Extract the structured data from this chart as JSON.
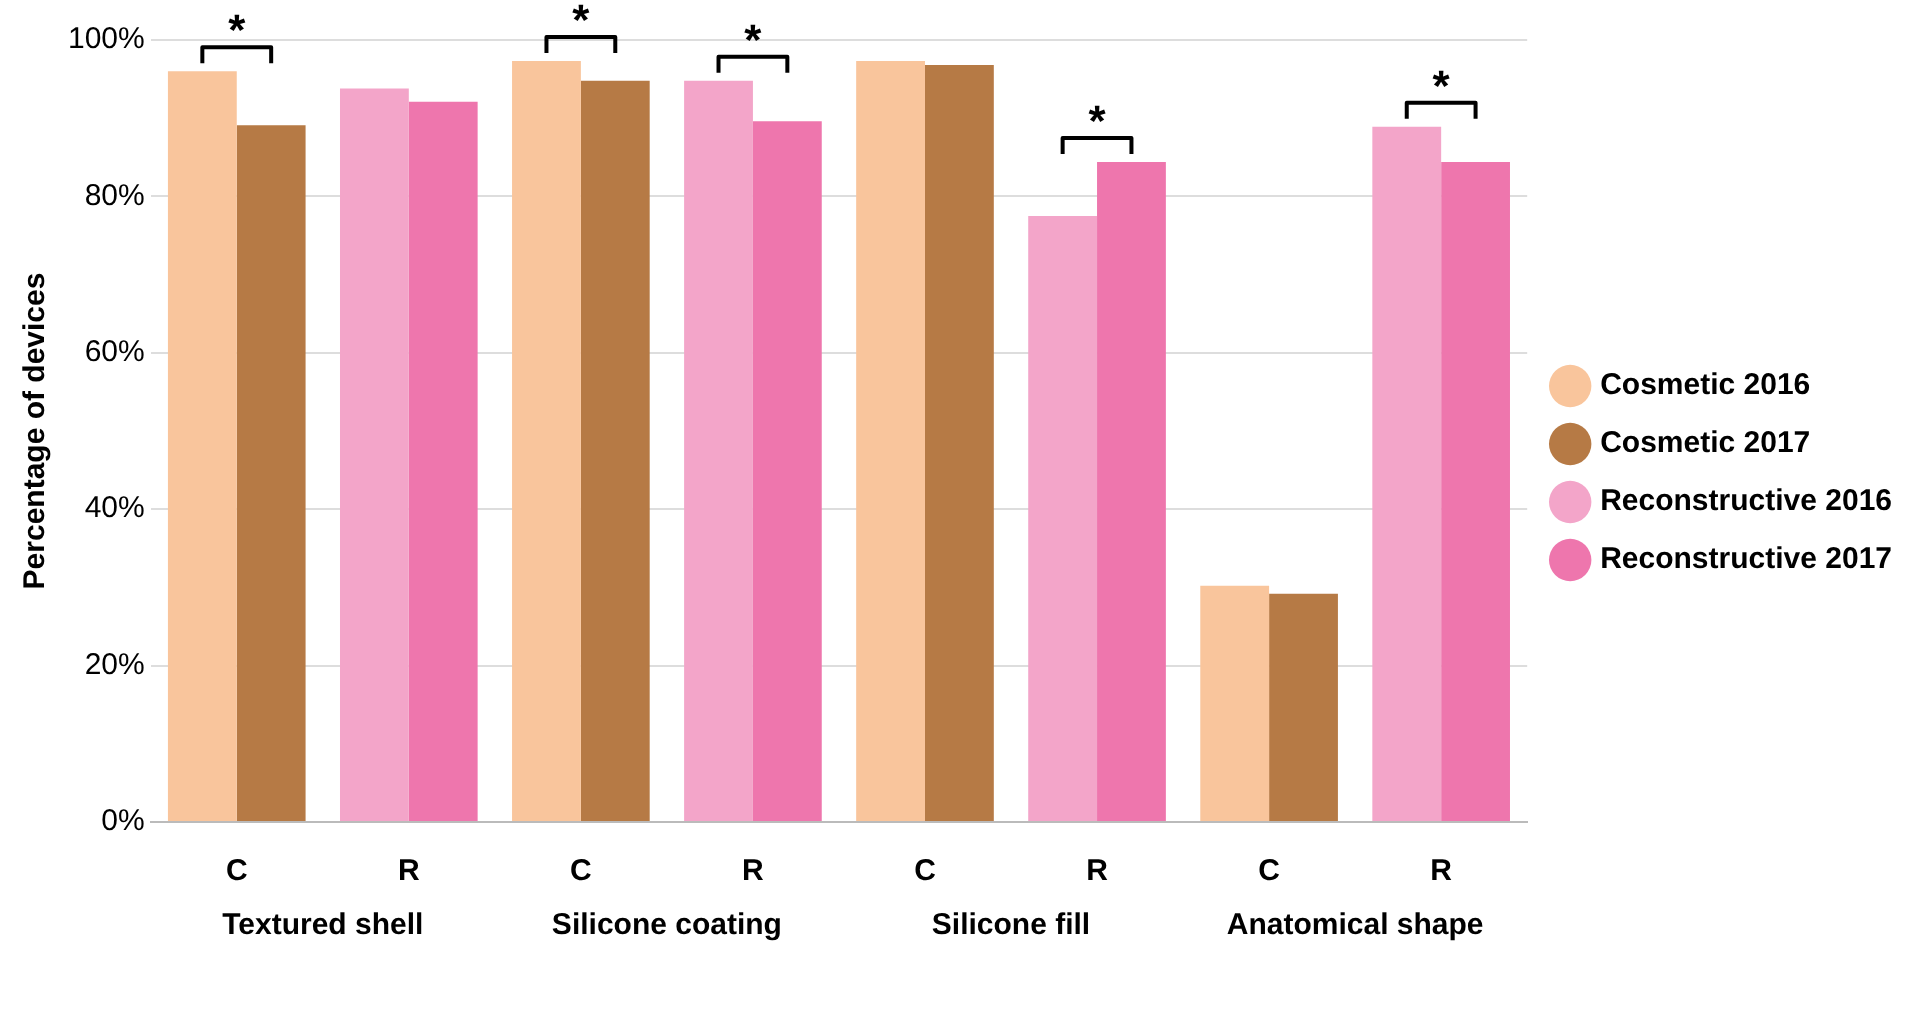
{
  "chart_data": {
    "type": "bar",
    "ylabel": "Percentage of devices",
    "categories": [
      "C",
      "R",
      "C",
      "R",
      "C",
      "R",
      "C",
      "R"
    ],
    "series": [
      {
        "name": "Cosmetic 2016",
        "color": "#f9c59c",
        "values": [
          96.0,
          null,
          97.3,
          null,
          97.3,
          null,
          30.2,
          null
        ]
      },
      {
        "name": "Cosmetic 2017",
        "color": "#b67a45",
        "values": [
          89.1,
          null,
          94.8,
          null,
          96.8,
          null,
          29.2,
          null
        ]
      },
      {
        "name": "Reconstructive 2016",
        "color": "#f3a5c9",
        "values": [
          null,
          93.8,
          null,
          94.8,
          null,
          77.5,
          null,
          88.9
        ]
      },
      {
        "name": "Reconstructive 2017",
        "color": "#ee76ad",
        "values": [
          null,
          92.1,
          null,
          89.6,
          null,
          84.4,
          null,
          84.4
        ]
      }
    ],
    "ylim": [
      0,
      100
    ],
    "yticks": [
      {
        "value": 0,
        "label": "0%"
      },
      {
        "value": 20,
        "label": "20%"
      },
      {
        "value": 40,
        "label": "40%"
      },
      {
        "value": 60,
        "label": "60%"
      },
      {
        "value": 80,
        "label": "80%"
      },
      {
        "value": 100,
        "label": "100%"
      }
    ],
    "grid": "y",
    "legend": "right",
    "annotations": [
      "*",
      "*",
      "*",
      "*",
      "*",
      "Textured shell",
      "Silicone coating",
      "Silicone fill",
      "Anatomical shape"
    ]
  }
}
